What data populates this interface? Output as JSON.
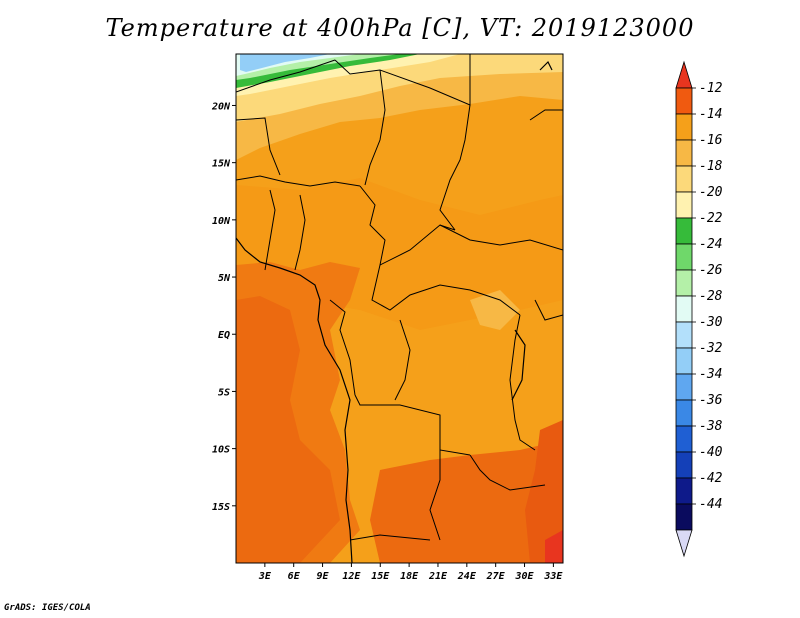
{
  "title": "Temperature at 400hPa [C], VT: 2019123000",
  "credit": "GrADS: IGES/COLA",
  "map": {
    "region": "Central Africa",
    "variable": "Temperature",
    "level": "400hPa",
    "units": "C",
    "valid_time": "2019123000",
    "lat_labels": [
      "20N",
      "15N",
      "10N",
      "5N",
      "EQ",
      "5S",
      "10S",
      "15S"
    ],
    "lat_values": [
      20,
      15,
      10,
      5,
      0,
      -5,
      -10,
      -15
    ],
    "lon_labels": [
      "3E",
      "6E",
      "9E",
      "12E",
      "15E",
      "18E",
      "21E",
      "24E",
      "27E",
      "30E",
      "33E"
    ],
    "lon_values": [
      3,
      6,
      9,
      12,
      15,
      18,
      21,
      24,
      27,
      30,
      33
    ],
    "lat_range": [
      -20,
      24.5
    ],
    "lon_range": [
      0,
      34
    ]
  },
  "colorbar": {
    "labels": [
      "-12",
      "-14",
      "-16",
      "-18",
      "-20",
      "-22",
      "-24",
      "-26",
      "-28",
      "-30",
      "-32",
      "-34",
      "-36",
      "-38",
      "-40",
      "-42",
      "-44"
    ],
    "colors": [
      "#e8351f",
      "#f05a10",
      "#f5a01a",
      "#f7b845",
      "#fcd97a",
      "#fff2b0",
      "#36bb3a",
      "#6fd86a",
      "#b4f0a8",
      "#e2fbf4",
      "#b3e0fb",
      "#93cef7",
      "#5fa7f0",
      "#3a88e6",
      "#1f5fd3",
      "#1440b8",
      "#0e1a8a",
      "#0a0b5e",
      "#d9d9f5"
    ]
  }
}
